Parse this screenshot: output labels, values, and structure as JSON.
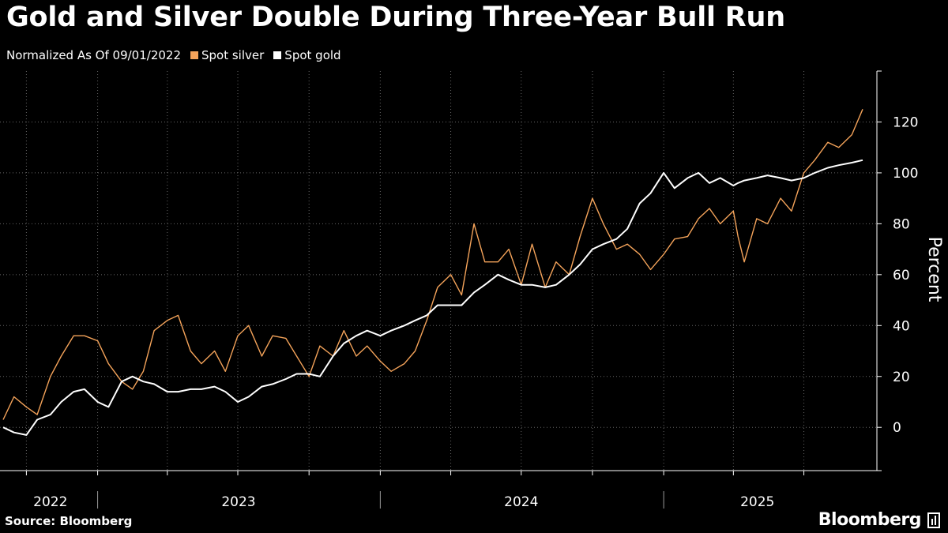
{
  "title": "Gold and Silver Double During Three-Year Bull Run",
  "legend": {
    "note": "Normalized As Of 09/01/2022",
    "items": [
      {
        "label": "Spot silver",
        "color": "#f4a35a"
      },
      {
        "label": "Spot gold",
        "color": "#ffffff"
      }
    ]
  },
  "source": "Source: Bloomberg",
  "brand": "Bloomberg",
  "chart_data": {
    "type": "line",
    "ylabel": "Percent",
    "ylim": [
      -17,
      140
    ],
    "yticks": [
      0,
      20,
      40,
      60,
      80,
      100,
      120
    ],
    "x_range": [
      "2022-09-01",
      "2025-09-17"
    ],
    "year_labels": [
      {
        "label": "2022",
        "date": "2022-11-01"
      },
      {
        "label": "2023",
        "date": "2023-07-02"
      },
      {
        "label": "2024",
        "date": "2024-07-01"
      },
      {
        "label": "2025",
        "date": "2025-05-02"
      }
    ],
    "grid": true,
    "series": [
      {
        "name": "Spot silver",
        "color": "#f4a35a",
        "x": [
          "2022-09-01",
          "2022-09-15",
          "2022-10-01",
          "2022-10-15",
          "2022-11-01",
          "2022-11-15",
          "2022-12-01",
          "2022-12-15",
          "2023-01-01",
          "2023-01-15",
          "2023-02-01",
          "2023-02-15",
          "2023-03-01",
          "2023-03-15",
          "2023-04-01",
          "2023-04-15",
          "2023-05-01",
          "2023-05-15",
          "2023-06-01",
          "2023-06-15",
          "2023-07-01",
          "2023-07-15",
          "2023-08-01",
          "2023-08-15",
          "2023-09-01",
          "2023-09-15",
          "2023-10-01",
          "2023-10-15",
          "2023-11-01",
          "2023-11-15",
          "2023-12-01",
          "2023-12-15",
          "2024-01-01",
          "2024-01-15",
          "2024-02-01",
          "2024-02-15",
          "2024-03-01",
          "2024-03-15",
          "2024-04-01",
          "2024-04-15",
          "2024-05-01",
          "2024-05-15",
          "2024-06-01",
          "2024-06-15",
          "2024-07-01",
          "2024-07-15",
          "2024-08-01",
          "2024-08-15",
          "2024-09-01",
          "2024-09-15",
          "2024-10-01",
          "2024-10-15",
          "2024-11-01",
          "2024-11-15",
          "2024-12-01",
          "2024-12-15",
          "2025-01-01",
          "2025-01-15",
          "2025-02-01",
          "2025-02-15",
          "2025-03-01",
          "2025-03-15",
          "2025-04-01",
          "2025-04-07",
          "2025-04-15",
          "2025-05-01",
          "2025-05-15",
          "2025-06-01",
          "2025-06-15",
          "2025-07-01",
          "2025-07-15",
          "2025-08-01",
          "2025-08-15",
          "2025-09-01",
          "2025-09-15"
        ],
        "values": [
          3,
          12,
          8,
          5,
          20,
          28,
          36,
          36,
          34,
          25,
          18,
          15,
          22,
          38,
          42,
          44,
          30,
          25,
          30,
          22,
          36,
          40,
          28,
          36,
          35,
          28,
          20,
          32,
          28,
          38,
          28,
          32,
          26,
          22,
          25,
          30,
          42,
          55,
          60,
          52,
          80,
          65,
          65,
          70,
          56,
          72,
          55,
          65,
          60,
          75,
          90,
          80,
          70,
          72,
          68,
          62,
          68,
          74,
          75,
          82,
          86,
          80,
          85,
          75,
          65,
          82,
          80,
          90,
          85,
          100,
          105,
          112,
          110,
          115,
          125
        ]
      },
      {
        "name": "Spot gold",
        "color": "#ffffff",
        "x": [
          "2022-09-01",
          "2022-09-15",
          "2022-10-01",
          "2022-10-15",
          "2022-11-01",
          "2022-11-15",
          "2022-12-01",
          "2022-12-15",
          "2023-01-01",
          "2023-01-15",
          "2023-02-01",
          "2023-02-15",
          "2023-03-01",
          "2023-03-15",
          "2023-04-01",
          "2023-04-15",
          "2023-05-01",
          "2023-05-15",
          "2023-06-01",
          "2023-06-15",
          "2023-07-01",
          "2023-07-15",
          "2023-08-01",
          "2023-08-15",
          "2023-09-01",
          "2023-09-15",
          "2023-10-01",
          "2023-10-15",
          "2023-11-01",
          "2023-11-15",
          "2023-12-01",
          "2023-12-15",
          "2024-01-01",
          "2024-01-15",
          "2024-02-01",
          "2024-02-15",
          "2024-03-01",
          "2024-03-15",
          "2024-04-01",
          "2024-04-15",
          "2024-05-01",
          "2024-05-15",
          "2024-06-01",
          "2024-06-15",
          "2024-07-01",
          "2024-07-15",
          "2024-08-01",
          "2024-08-15",
          "2024-09-01",
          "2024-09-15",
          "2024-10-01",
          "2024-10-15",
          "2024-11-01",
          "2024-11-15",
          "2024-12-01",
          "2024-12-15",
          "2025-01-01",
          "2025-01-15",
          "2025-02-01",
          "2025-02-15",
          "2025-03-01",
          "2025-03-15",
          "2025-04-01",
          "2025-04-07",
          "2025-04-15",
          "2025-05-01",
          "2025-05-15",
          "2025-06-01",
          "2025-06-15",
          "2025-07-01",
          "2025-07-15",
          "2025-08-01",
          "2025-08-15",
          "2025-09-01",
          "2025-09-15"
        ],
        "values": [
          0,
          -2,
          -3,
          3,
          5,
          10,
          14,
          15,
          10,
          8,
          18,
          20,
          18,
          17,
          14,
          14,
          15,
          15,
          16,
          14,
          10,
          12,
          16,
          17,
          19,
          21,
          21,
          20,
          28,
          33,
          36,
          38,
          36,
          38,
          40,
          42,
          44,
          48,
          48,
          48,
          53,
          56,
          60,
          58,
          56,
          56,
          55,
          56,
          60,
          64,
          70,
          72,
          74,
          78,
          88,
          92,
          100,
          94,
          98,
          100,
          96,
          98,
          95,
          96,
          97,
          98,
          99,
          98,
          97,
          98,
          100,
          102,
          103,
          104,
          105
        ]
      }
    ]
  }
}
